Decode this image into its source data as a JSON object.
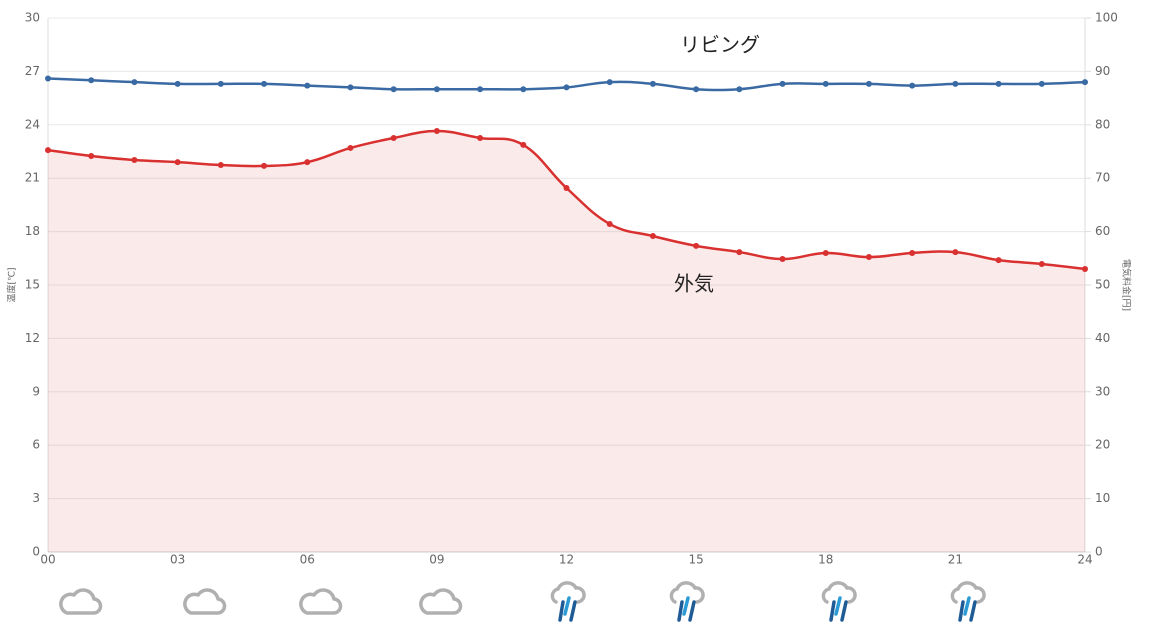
{
  "chart_data": {
    "type": "line",
    "y_label": "温度[℃]",
    "y2_label": "電気料金[円]",
    "categories": [
      "00",
      null,
      null,
      "03",
      null,
      null,
      "06",
      null,
      null,
      "09",
      null,
      null,
      "12",
      null,
      null,
      "15",
      null,
      null,
      "18",
      null,
      null,
      "21",
      null,
      null,
      "24"
    ],
    "series": [
      {
        "name": "リビング",
        "color": "#3a6aa3",
        "values": [
          26.6,
          26.5,
          26.4,
          26.3,
          26.3,
          26.3,
          26.2,
          26.1,
          26.0,
          26.0,
          26.0,
          26.0,
          26.1,
          26.4,
          26.3,
          26.0,
          26.0,
          26.3,
          26.3,
          26.3,
          26.2,
          26.3,
          26.3,
          26.3,
          26.4
        ]
      },
      {
        "name": "外気",
        "color": "#d93030",
        "fill": true,
        "values": [
          22.58,
          22.25,
          22.02,
          21.9,
          21.74,
          21.69,
          21.9,
          22.7,
          23.26,
          23.65,
          23.26,
          22.87,
          20.45,
          18.43,
          17.75,
          17.2,
          16.85,
          16.46,
          16.8,
          16.57,
          16.8,
          16.85,
          16.4,
          16.18,
          15.9
        ]
      }
    ],
    "ylim": [
      0,
      30
    ],
    "yticks": [
      0,
      3,
      6,
      9,
      12,
      15,
      18,
      21,
      24,
      27,
      30
    ],
    "y2lim": [
      0,
      100
    ],
    "y2ticks": [
      0,
      10,
      20,
      30,
      40,
      50,
      60,
      70,
      80,
      90,
      100
    ],
    "grid": true
  }
}
